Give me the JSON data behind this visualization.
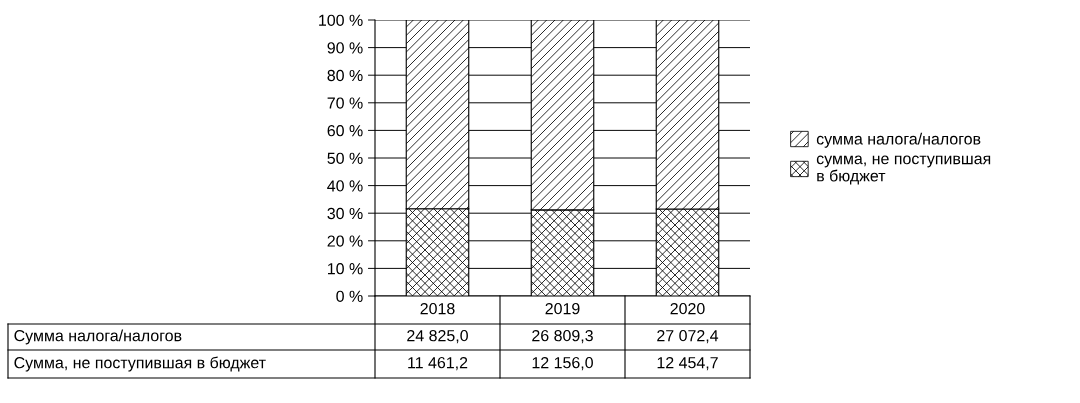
{
  "chart_data": {
    "type": "bar",
    "stacked": true,
    "categories": [
      "2018",
      "2019",
      "2020"
    ],
    "series": [
      {
        "name": "сумма, не поступившая\nв бюджет",
        "color": "#000000",
        "values": [
          31.6,
          31.2,
          31.5
        ]
      },
      {
        "name": "сумма налога/налогов",
        "color": "#000000",
        "values": [
          68.4,
          68.8,
          68.5
        ]
      }
    ],
    "ylim": [
      0,
      100
    ],
    "yticks": [
      {
        "value": 0,
        "label": "0 %"
      },
      {
        "value": 10,
        "label": "10 %"
      },
      {
        "value": 20,
        "label": "20 %"
      },
      {
        "value": 30,
        "label": "30 %"
      },
      {
        "value": 40,
        "label": "40 %"
      },
      {
        "value": 50,
        "label": "50 %"
      },
      {
        "value": 60,
        "label": "60 %"
      },
      {
        "value": 70,
        "label": "70 %"
      },
      {
        "value": 80,
        "label": "80 %"
      },
      {
        "value": 90,
        "label": "90 %"
      },
      {
        "value": 100,
        "label": "100 %"
      }
    ],
    "annotations": [
      "Сумма налога/налогов",
      "24 825,0",
      "26 809,3",
      "27 072,4",
      "Сумма, не поступившая в бюджет",
      "11 461,2",
      "12 156,0",
      "12 454,7"
    ],
    "grid": "y",
    "legend": "right"
  }
}
